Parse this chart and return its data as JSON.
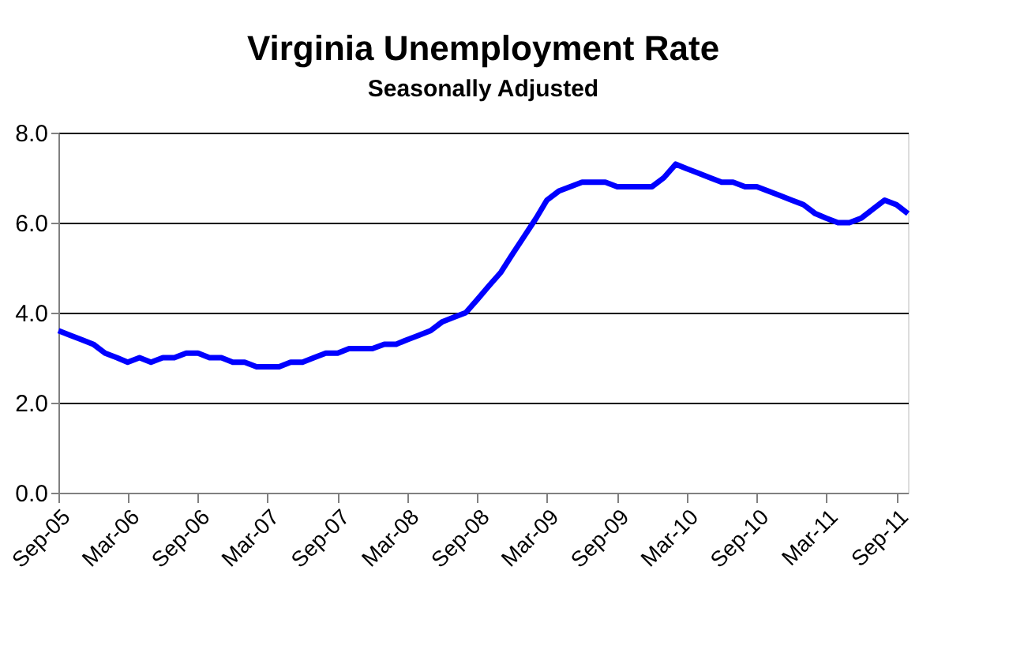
{
  "chart_data": {
    "type": "line",
    "title": "Virginia Unemployment Rate",
    "subtitle": "Seasonally Adjusted",
    "x": [
      "2005-09",
      "2005-10",
      "2005-11",
      "2005-12",
      "2006-01",
      "2006-02",
      "2006-03",
      "2006-04",
      "2006-05",
      "2006-06",
      "2006-07",
      "2006-08",
      "2006-09",
      "2006-10",
      "2006-11",
      "2006-12",
      "2007-01",
      "2007-02",
      "2007-03",
      "2007-04",
      "2007-05",
      "2007-06",
      "2007-07",
      "2007-08",
      "2007-09",
      "2007-10",
      "2007-11",
      "2007-12",
      "2008-01",
      "2008-02",
      "2008-03",
      "2008-04",
      "2008-05",
      "2008-06",
      "2008-07",
      "2008-08",
      "2008-09",
      "2008-10",
      "2008-11",
      "2008-12",
      "2009-01",
      "2009-02",
      "2009-03",
      "2009-04",
      "2009-05",
      "2009-06",
      "2009-07",
      "2009-08",
      "2009-09",
      "2009-10",
      "2009-11",
      "2009-12",
      "2010-01",
      "2010-02",
      "2010-03",
      "2010-04",
      "2010-05",
      "2010-06",
      "2010-07",
      "2010-08",
      "2010-09",
      "2010-10",
      "2010-11",
      "2010-12",
      "2011-01",
      "2011-02",
      "2011-03",
      "2011-04",
      "2011-05",
      "2011-06",
      "2011-07",
      "2011-08",
      "2011-09",
      "2011-10"
    ],
    "series": [
      {
        "color": "#0000ff",
        "values": [
          3.6,
          3.5,
          3.4,
          3.3,
          3.1,
          3.0,
          2.9,
          3.0,
          2.9,
          3.0,
          3.0,
          3.1,
          3.1,
          3.0,
          3.0,
          2.9,
          2.9,
          2.8,
          2.8,
          2.8,
          2.9,
          2.9,
          3.0,
          3.1,
          3.1,
          3.2,
          3.2,
          3.2,
          3.3,
          3.3,
          3.4,
          3.5,
          3.6,
          3.8,
          3.9,
          4.0,
          4.3,
          4.6,
          4.9,
          5.3,
          5.7,
          6.1,
          6.5,
          6.7,
          6.8,
          6.9,
          6.9,
          6.9,
          6.8,
          6.8,
          6.8,
          6.8,
          7.0,
          7.3,
          7.2,
          7.1,
          7.0,
          6.9,
          6.9,
          6.8,
          6.8,
          6.7,
          6.6,
          6.5,
          6.4,
          6.2,
          6.1,
          6.0,
          6.0,
          6.1,
          6.3,
          6.5,
          6.4,
          6.2
        ]
      }
    ],
    "xlim": [
      "2005-09",
      "2011-10"
    ],
    "xticks": [
      {
        "value": "2005-09",
        "label": "Sep-05"
      },
      {
        "value": "2006-03",
        "label": "Mar-06"
      },
      {
        "value": "2006-09",
        "label": "Sep-06"
      },
      {
        "value": "2007-03",
        "label": "Mar-07"
      },
      {
        "value": "2007-09",
        "label": "Sep-07"
      },
      {
        "value": "2008-03",
        "label": "Mar-08"
      },
      {
        "value": "2008-09",
        "label": "Sep-08"
      },
      {
        "value": "2009-03",
        "label": "Mar-09"
      },
      {
        "value": "2009-09",
        "label": "Sep-09"
      },
      {
        "value": "2010-03",
        "label": "Mar-10"
      },
      {
        "value": "2010-09",
        "label": "Sep-10"
      },
      {
        "value": "2011-03",
        "label": "Mar-11"
      },
      {
        "value": "2011-09",
        "label": "Sep-11"
      }
    ],
    "ylim": [
      0,
      8
    ],
    "yticks": [
      {
        "value": 0,
        "label": "0.0"
      },
      {
        "value": 2,
        "label": "2.0"
      },
      {
        "value": 4,
        "label": "4.0"
      },
      {
        "value": 6,
        "label": "6.0"
      },
      {
        "value": 8,
        "label": "8.0"
      }
    ],
    "grid": "y",
    "marker": "none",
    "line_style": "solid"
  }
}
